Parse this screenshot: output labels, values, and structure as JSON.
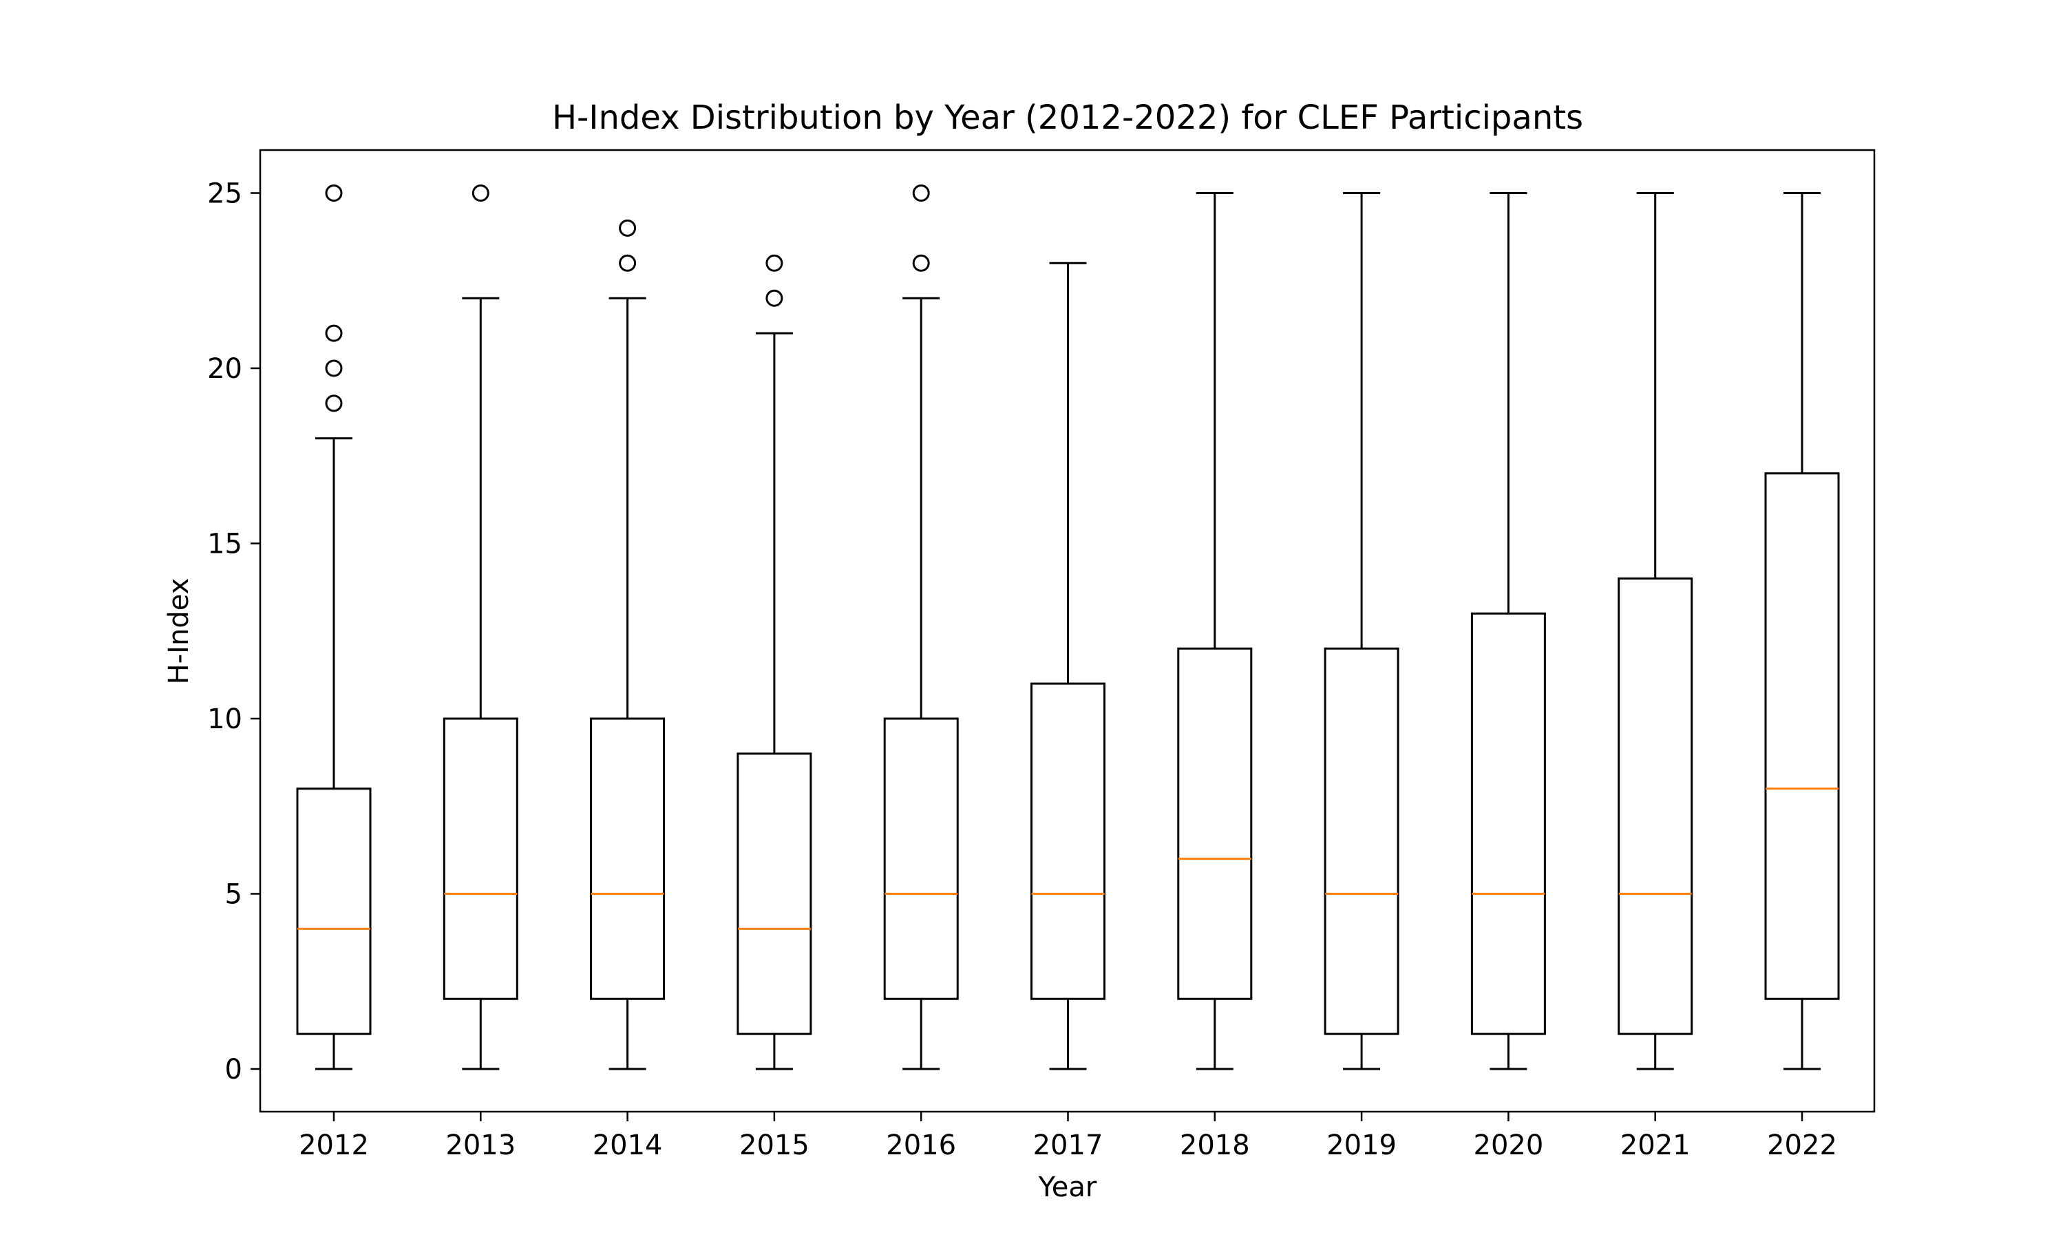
{
  "chart_data": {
    "type": "boxplot",
    "title": "H-Index Distribution by Year (2012-2022) for CLEF Participants",
    "xlabel": "Year",
    "ylabel": "H-Index",
    "ylim": [
      -1.25,
      26.25
    ],
    "yticks": [
      0,
      5,
      10,
      15,
      20,
      25
    ],
    "grid": false,
    "categories": [
      "2012",
      "2013",
      "2014",
      "2015",
      "2016",
      "2017",
      "2018",
      "2019",
      "2020",
      "2021",
      "2022"
    ],
    "boxes": [
      {
        "year": "2012",
        "whisker_low": 0,
        "q1": 1,
        "median": 4,
        "q3": 8,
        "whisker_high": 18,
        "outliers": [
          19,
          20,
          21,
          25
        ]
      },
      {
        "year": "2013",
        "whisker_low": 0,
        "q1": 2,
        "median": 5,
        "q3": 10,
        "whisker_high": 22,
        "outliers": [
          25
        ]
      },
      {
        "year": "2014",
        "whisker_low": 0,
        "q1": 2,
        "median": 5,
        "q3": 10,
        "whisker_high": 22,
        "outliers": [
          23,
          24
        ]
      },
      {
        "year": "2015",
        "whisker_low": 0,
        "q1": 1,
        "median": 4,
        "q3": 9,
        "whisker_high": 21,
        "outliers": [
          22,
          23
        ]
      },
      {
        "year": "2016",
        "whisker_low": 0,
        "q1": 2,
        "median": 5,
        "q3": 10,
        "whisker_high": 22,
        "outliers": [
          23,
          25
        ]
      },
      {
        "year": "2017",
        "whisker_low": 0,
        "q1": 2,
        "median": 5,
        "q3": 11,
        "whisker_high": 23,
        "outliers": []
      },
      {
        "year": "2018",
        "whisker_low": 0,
        "q1": 2,
        "median": 6,
        "q3": 12,
        "whisker_high": 25,
        "outliers": []
      },
      {
        "year": "2019",
        "whisker_low": 0,
        "q1": 1,
        "median": 5,
        "q3": 12,
        "whisker_high": 25,
        "outliers": []
      },
      {
        "year": "2020",
        "whisker_low": 0,
        "q1": 1,
        "median": 5,
        "q3": 13,
        "whisker_high": 25,
        "outliers": []
      },
      {
        "year": "2021",
        "whisker_low": 0,
        "q1": 1,
        "median": 5,
        "q3": 14,
        "whisker_high": 25,
        "outliers": []
      },
      {
        "year": "2022",
        "whisker_low": 0,
        "q1": 2,
        "median": 8,
        "q3": 17,
        "whisker_high": 25,
        "outliers": []
      }
    ],
    "colors": {
      "box": "#000000",
      "median": "#ff7f0e",
      "background": "#ffffff"
    }
  }
}
